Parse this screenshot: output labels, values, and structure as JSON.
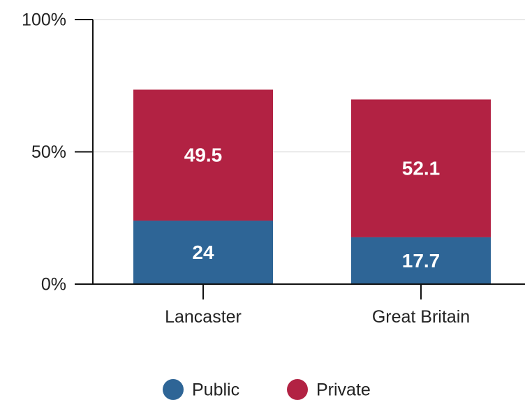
{
  "chart_data": {
    "type": "bar",
    "stacked": true,
    "categories": [
      "Lancaster",
      "Great Britain"
    ],
    "series": [
      {
        "name": "Public",
        "values": [
          24,
          17.7
        ],
        "labels": [
          "24",
          "17.7"
        ],
        "color": "#2e6596"
      },
      {
        "name": "Private",
        "values": [
          49.5,
          52.1
        ],
        "labels": [
          "49.5",
          "52.1"
        ],
        "color": "#b22243"
      }
    ],
    "ylim": [
      0,
      100
    ],
    "yticks": [
      {
        "value": 0,
        "label": "0%"
      },
      {
        "value": 50,
        "label": "50%"
      },
      {
        "value": 100,
        "label": "100%"
      }
    ],
    "grid": true,
    "legend": "bottom-center"
  }
}
